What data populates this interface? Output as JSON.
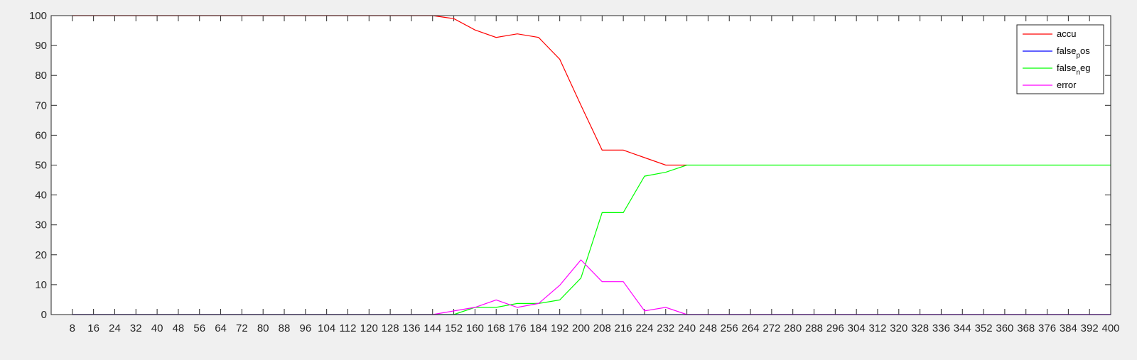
{
  "chart_data": {
    "type": "line",
    "title": "",
    "xlabel": "",
    "ylabel": "",
    "xlim": [
      0,
      400
    ],
    "ylim": [
      0,
      100
    ],
    "grid": false,
    "legend_position": "top-right",
    "x": [
      8,
      16,
      24,
      32,
      40,
      48,
      56,
      64,
      72,
      80,
      88,
      96,
      104,
      112,
      120,
      128,
      136,
      144,
      152,
      160,
      168,
      176,
      184,
      192,
      200,
      208,
      216,
      224,
      232,
      240,
      248,
      256,
      264,
      272,
      280,
      288,
      296,
      304,
      312,
      320,
      328,
      336,
      344,
      352,
      360,
      368,
      376,
      384,
      392,
      400
    ],
    "x_ticks": [
      "8",
      "16",
      "24",
      "32",
      "40",
      "48",
      "56",
      "64",
      "72",
      "80",
      "88",
      "96",
      "104",
      "112",
      "120",
      "128",
      "136",
      "144",
      "152",
      "160",
      "168",
      "176",
      "184",
      "192",
      "200",
      "208",
      "216",
      "224",
      "232",
      "240",
      "248",
      "256",
      "264",
      "272",
      "280",
      "288",
      "296",
      "304",
      "312",
      "320",
      "328",
      "336",
      "344",
      "352",
      "360",
      "368",
      "376",
      "384",
      "392",
      "400"
    ],
    "y_ticks": [
      "0",
      "10",
      "20",
      "30",
      "40",
      "50",
      "60",
      "70",
      "80",
      "90",
      "100"
    ],
    "series": [
      {
        "name": "accu",
        "color": "#ff0000",
        "values": [
          100,
          100,
          100,
          100,
          100,
          100,
          100,
          100,
          100,
          100,
          100,
          100,
          100,
          100,
          100,
          100,
          100,
          100,
          99,
          95.2,
          92.7,
          93.9,
          92.7,
          85.4,
          70,
          55,
          55,
          52.5,
          50,
          50,
          null,
          null,
          null,
          null,
          null,
          null,
          null,
          null,
          null,
          null,
          null,
          null,
          null,
          null,
          null,
          null,
          null,
          null,
          null,
          null
        ]
      },
      {
        "name": "false_pos",
        "legend_main": "false",
        "legend_sub": "p",
        "legend_tail": "os",
        "color": "#0000ff",
        "values": [
          0,
          0,
          0,
          0,
          0,
          0,
          0,
          0,
          0,
          0,
          0,
          0,
          0,
          0,
          0,
          0,
          0,
          0,
          0,
          0,
          0,
          0,
          0,
          0,
          0,
          0,
          0,
          0,
          0,
          0,
          0,
          0,
          0,
          0,
          0,
          0,
          0,
          0,
          0,
          0,
          0,
          0,
          0,
          0,
          0,
          0,
          0,
          0,
          0,
          0
        ]
      },
      {
        "name": "false_neg",
        "legend_main": "false",
        "legend_sub": "n",
        "legend_tail": "eg",
        "color": "#00ff00",
        "values": [
          0,
          0,
          0,
          0,
          0,
          0,
          0,
          0,
          0,
          0,
          0,
          0,
          0,
          0,
          0,
          0,
          0,
          0,
          0,
          2.4,
          2.4,
          3.7,
          3.7,
          4.9,
          12.2,
          34.1,
          34.1,
          46.3,
          47.6,
          50,
          50,
          50,
          50,
          50,
          50,
          50,
          50,
          50,
          50,
          50,
          50,
          50,
          50,
          50,
          50,
          50,
          50,
          50,
          50,
          50
        ]
      },
      {
        "name": "error",
        "color": "#ff00ff",
        "values": [
          0,
          0,
          0,
          0,
          0,
          0,
          0,
          0,
          0,
          0,
          0,
          0,
          0,
          0,
          0,
          0,
          0,
          0,
          1.2,
          2.4,
          4.9,
          2.4,
          3.7,
          9.8,
          18.3,
          11,
          11,
          1.2,
          2.4,
          0,
          0,
          0,
          0,
          0,
          0,
          0,
          0,
          0,
          0,
          0,
          0,
          0,
          0,
          0,
          0,
          0,
          0,
          0,
          0,
          0
        ]
      }
    ]
  }
}
